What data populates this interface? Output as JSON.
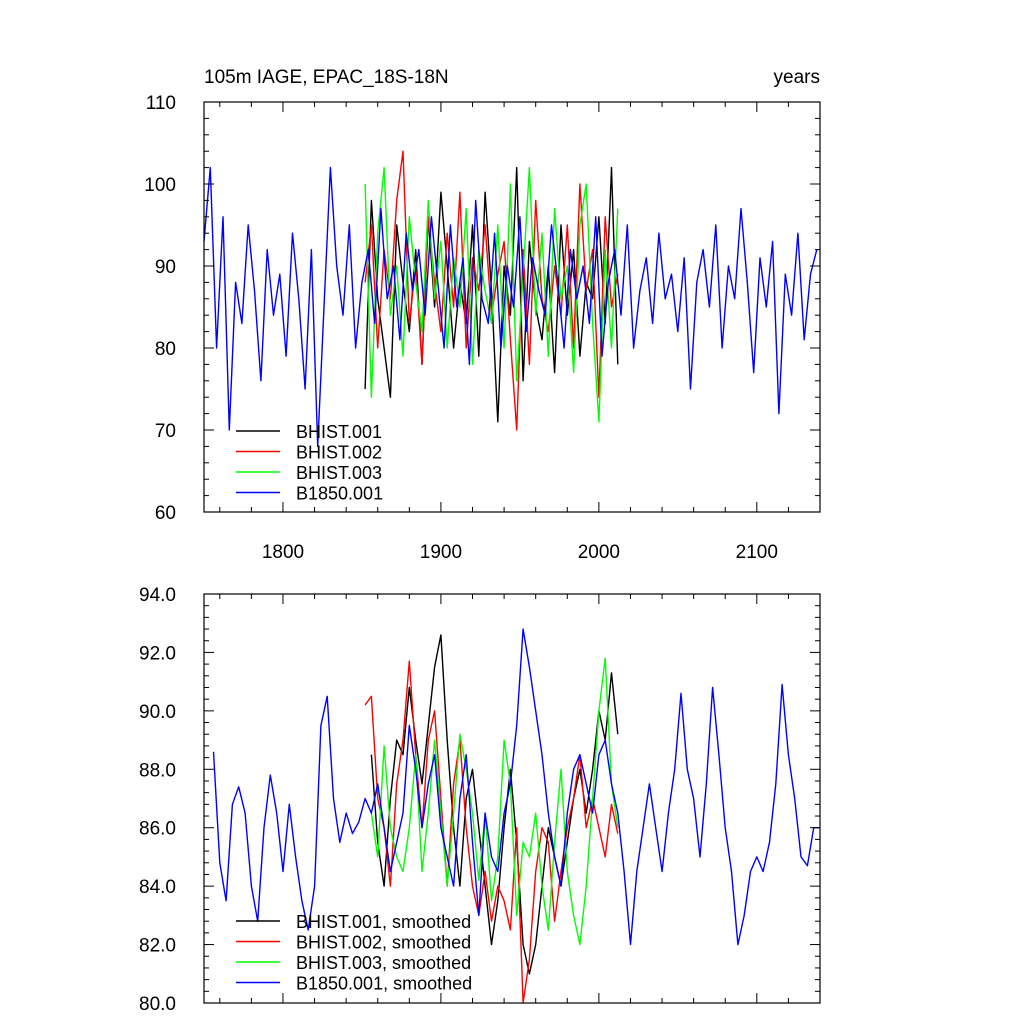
{
  "chart_data": [
    {
      "type": "line",
      "title": "105m IAGE, EPAC_18S-18N",
      "units_label": "years",
      "xlim": [
        1750,
        2140
      ],
      "ylim": [
        60,
        110
      ],
      "x_ticks": [
        1800,
        1900,
        2000,
        2100
      ],
      "x_tick_labels": [
        "1800",
        "1900",
        "2000",
        "2100"
      ],
      "y_ticks": [
        60,
        70,
        80,
        90,
        100,
        110
      ],
      "y_tick_labels": [
        "60",
        "70",
        "80",
        "90",
        "100",
        "110"
      ],
      "legend_position": "bottom-left",
      "series": [
        {
          "name": "BHIST.001",
          "color": "#000000",
          "x": [
            1852,
            1856,
            1860,
            1864,
            1868,
            1872,
            1876,
            1880,
            1884,
            1888,
            1892,
            1896,
            1900,
            1904,
            1908,
            1912,
            1916,
            1920,
            1924,
            1928,
            1932,
            1936,
            1940,
            1944,
            1948,
            1952,
            1956,
            1960,
            1964,
            1968,
            1972,
            1976,
            1980,
            1984,
            1988,
            1992,
            1996,
            2000,
            2004,
            2008,
            2012
          ],
          "y": [
            75,
            98,
            86,
            80,
            74,
            95,
            88,
            82,
            92,
            78,
            96,
            85,
            99,
            90,
            80,
            88,
            83,
            95,
            79,
            99,
            87,
            71,
            90,
            84,
            102,
            76,
            93,
            85,
            81,
            90,
            77,
            95,
            84,
            92,
            79,
            88,
            86,
            96,
            83,
            102,
            78
          ]
        },
        {
          "name": "BHIST.002",
          "color": "#ff0000",
          "x": [
            1852,
            1856,
            1860,
            1864,
            1868,
            1872,
            1876,
            1880,
            1884,
            1888,
            1892,
            1896,
            1900,
            1904,
            1908,
            1912,
            1916,
            1920,
            1924,
            1928,
            1932,
            1936,
            1940,
            1944,
            1948,
            1952,
            1956,
            1960,
            1964,
            1968,
            1972,
            1976,
            1980,
            1984,
            1988,
            1992,
            1996,
            2000,
            2004,
            2008,
            2012
          ],
          "y": [
            88,
            95,
            80,
            92,
            86,
            98,
            104,
            83,
            90,
            78,
            96,
            88,
            82,
            94,
            85,
            99,
            80,
            91,
            87,
            95,
            84,
            89,
            93,
            81,
            70,
            92,
            78,
            98,
            86,
            82,
            90,
            84,
            95,
            80,
            100,
            87,
            92,
            74,
            96,
            85,
            89
          ]
        },
        {
          "name": "BHIST.003",
          "color": "#00ff00",
          "x": [
            1852,
            1856,
            1860,
            1864,
            1868,
            1872,
            1876,
            1880,
            1884,
            1888,
            1892,
            1896,
            1900,
            1904,
            1908,
            1912,
            1916,
            1920,
            1924,
            1928,
            1932,
            1936,
            1940,
            1944,
            1948,
            1952,
            1956,
            1960,
            1964,
            1968,
            1972,
            1976,
            1980,
            1984,
            1988,
            1992,
            1996,
            2000,
            2004,
            2008,
            2012
          ],
          "y": [
            100,
            74,
            94,
            102,
            84,
            90,
            79,
            96,
            88,
            82,
            98,
            86,
            93,
            80,
            91,
            85,
            97,
            78,
            92,
            87,
            83,
            95,
            80,
            100,
            76,
            89,
            102,
            84,
            94,
            79,
            97,
            86,
            90,
            77,
            95,
            100,
            83,
            71,
            92,
            80,
            97
          ]
        },
        {
          "name": "B1850.001",
          "color": "#0000ff",
          "x": [
            1750,
            1754,
            1758,
            1762,
            1766,
            1770,
            1774,
            1778,
            1782,
            1786,
            1790,
            1794,
            1798,
            1802,
            1806,
            1810,
            1814,
            1818,
            1822,
            1826,
            1830,
            1834,
            1838,
            1842,
            1846,
            1850,
            1854,
            1858,
            1862,
            1866,
            1870,
            1874,
            1878,
            1882,
            1886,
            1890,
            1894,
            1898,
            1902,
            1906,
            1910,
            1914,
            1918,
            1922,
            1926,
            1930,
            1934,
            1938,
            1942,
            1946,
            1950,
            1954,
            1958,
            1962,
            1966,
            1970,
            1974,
            1978,
            1982,
            1986,
            1990,
            1994,
            1998,
            2002,
            2006,
            2010,
            2014,
            2018,
            2022,
            2026,
            2030,
            2034,
            2038,
            2042,
            2046,
            2050,
            2054,
            2058,
            2062,
            2066,
            2070,
            2074,
            2078,
            2082,
            2086,
            2090,
            2094,
            2098,
            2102,
            2106,
            2110,
            2114,
            2118,
            2122,
            2126,
            2130,
            2134,
            2138
          ],
          "y": [
            93,
            102,
            80,
            96,
            70,
            88,
            83,
            95,
            87,
            76,
            92,
            84,
            89,
            79,
            94,
            86,
            75,
            92,
            68,
            85,
            102,
            90,
            84,
            95,
            80,
            88,
            92,
            83,
            97,
            86,
            90,
            81,
            94,
            87,
            92,
            84,
            96,
            88,
            80,
            95,
            85,
            91,
            78,
            98,
            86,
            83,
            94,
            80,
            90,
            85,
            96,
            82,
            91,
            87,
            84,
            95,
            88,
            80,
            92,
            86,
            90,
            83,
            96,
            79,
            88,
            92,
            84,
            95,
            80,
            87,
            91,
            83,
            94,
            86,
            89,
            82,
            91,
            75,
            88,
            92,
            85,
            95,
            80,
            90,
            86,
            97,
            88,
            77,
            91,
            85,
            93,
            72,
            89,
            84,
            94,
            81,
            89,
            92
          ]
        }
      ]
    },
    {
      "type": "line",
      "xlim": [
        1750,
        2140
      ],
      "ylim": [
        80,
        94
      ],
      "y_ticks": [
        80,
        82,
        84,
        86,
        88,
        90,
        92,
        94
      ],
      "y_tick_labels": [
        "80.0",
        "82.0",
        "84.0",
        "86.0",
        "88.0",
        "90.0",
        "92.0",
        "94.0"
      ],
      "x_ticks": [
        1800,
        1900,
        2000,
        2100
      ],
      "legend_position": "bottom-left",
      "series": [
        {
          "name": "BHIST.001, smoothed",
          "color": "#000000",
          "x": [
            1856,
            1860,
            1864,
            1868,
            1872,
            1876,
            1880,
            1884,
            1888,
            1892,
            1896,
            1900,
            1904,
            1908,
            1912,
            1916,
            1920,
            1924,
            1928,
            1932,
            1936,
            1940,
            1944,
            1948,
            1952,
            1956,
            1960,
            1964,
            1968,
            1972,
            1976,
            1980,
            1984,
            1988,
            1992,
            1996,
            2000,
            2004,
            2008,
            2012
          ],
          "y": [
            88.5,
            85.5,
            84,
            87,
            89,
            88.5,
            90.8,
            89,
            87.5,
            89.5,
            91.5,
            92.6,
            89,
            86,
            84,
            87,
            88,
            86,
            84,
            82,
            83.5,
            86,
            88,
            85.5,
            82,
            81,
            82,
            84,
            86,
            85,
            84,
            85.5,
            87,
            88,
            86.5,
            88,
            90,
            89,
            91.3,
            89.2
          ]
        },
        {
          "name": "BHIST.002, smoothed",
          "color": "#ff0000",
          "x": [
            1852,
            1856,
            1860,
            1864,
            1868,
            1872,
            1876,
            1880,
            1884,
            1888,
            1892,
            1896,
            1900,
            1904,
            1908,
            1912,
            1916,
            1920,
            1924,
            1928,
            1932,
            1936,
            1940,
            1944,
            1948,
            1952,
            1956,
            1960,
            1964,
            1968,
            1972,
            1976,
            1980,
            1984,
            1988,
            1992,
            1996,
            2000,
            2004,
            2008,
            2012
          ],
          "y": [
            90.2,
            90.5,
            87,
            86,
            84,
            87.5,
            89,
            91.7,
            88.5,
            86,
            89,
            90,
            87,
            84,
            87.5,
            89,
            86,
            84,
            83,
            84.5,
            82.8,
            84,
            83.5,
            82.5,
            86,
            80,
            81.5,
            84.5,
            86,
            85.5,
            82.8,
            84.5,
            86,
            87,
            88.5,
            86,
            87,
            86,
            85,
            86.8,
            85.8
          ]
        },
        {
          "name": "BHIST.003, smoothed",
          "color": "#00ff00",
          "x": [
            1856,
            1860,
            1864,
            1868,
            1872,
            1876,
            1880,
            1884,
            1888,
            1892,
            1896,
            1900,
            1904,
            1908,
            1912,
            1916,
            1920,
            1924,
            1928,
            1932,
            1936,
            1940,
            1944,
            1948,
            1952,
            1956,
            1960,
            1964,
            1968,
            1972,
            1976,
            1980,
            1984,
            1988,
            1992,
            1996,
            2000,
            2004,
            2008,
            2012
          ],
          "y": [
            86.5,
            85,
            88.8,
            86,
            85,
            84.5,
            86,
            88.5,
            84.5,
            86.5,
            89,
            86.5,
            84,
            86.5,
            89.2,
            88,
            86.5,
            84.2,
            86.5,
            83.5,
            85,
            89,
            87.5,
            83,
            85.5,
            85,
            86.5,
            84,
            82.5,
            85.5,
            88,
            84.5,
            83,
            82,
            84,
            87,
            90,
            91.8,
            87.5,
            86
          ]
        },
        {
          "name": "B1850.001, smoothed",
          "color": "#0000ff",
          "x": [
            1756,
            1760,
            1764,
            1768,
            1772,
            1776,
            1780,
            1784,
            1788,
            1792,
            1796,
            1800,
            1804,
            1808,
            1812,
            1816,
            1820,
            1824,
            1828,
            1832,
            1836,
            1840,
            1844,
            1848,
            1852,
            1856,
            1860,
            1864,
            1868,
            1872,
            1876,
            1880,
            1884,
            1888,
            1892,
            1896,
            1900,
            1904,
            1908,
            1912,
            1916,
            1920,
            1924,
            1928,
            1932,
            1936,
            1940,
            1944,
            1948,
            1952,
            1956,
            1960,
            1964,
            1968,
            1972,
            1976,
            1980,
            1984,
            1988,
            1992,
            1996,
            2000,
            2004,
            2008,
            2012,
            2016,
            2020,
            2024,
            2028,
            2032,
            2036,
            2040,
            2044,
            2048,
            2052,
            2056,
            2060,
            2064,
            2068,
            2072,
            2076,
            2080,
            2084,
            2088,
            2092,
            2096,
            2100,
            2104,
            2108,
            2112,
            2116,
            2120,
            2124,
            2128,
            2132,
            2136,
            2140
          ],
          "y": [
            88.6,
            84.8,
            83.5,
            86.8,
            87.4,
            86.5,
            84,
            82.8,
            86,
            87.8,
            86.5,
            84.5,
            86.8,
            85,
            83.5,
            82.5,
            84,
            89.5,
            90.5,
            87,
            85.5,
            86.5,
            85.8,
            86.2,
            87,
            86.5,
            87.5,
            86,
            84.5,
            85.5,
            86.5,
            89.5,
            88,
            86,
            87.5,
            88.5,
            86,
            85,
            84,
            87,
            88.5,
            85.5,
            83,
            86.5,
            85,
            84.5,
            86.5,
            87.5,
            89.5,
            92.8,
            91.5,
            90,
            88.5,
            86.5,
            85,
            84,
            86.5,
            88,
            88.5,
            87.5,
            86.5,
            88.5,
            89,
            87.5,
            86.5,
            84.5,
            82,
            84.5,
            86,
            87.5,
            86,
            84.5,
            86.5,
            88,
            90.6,
            88,
            87,
            85,
            87.5,
            90.8,
            88.5,
            86,
            84.5,
            82,
            83,
            84.5,
            85,
            84.5,
            85.5,
            87.5,
            90.9,
            88.5,
            87,
            85,
            84.7,
            86,
            86
          ]
        }
      ]
    }
  ]
}
